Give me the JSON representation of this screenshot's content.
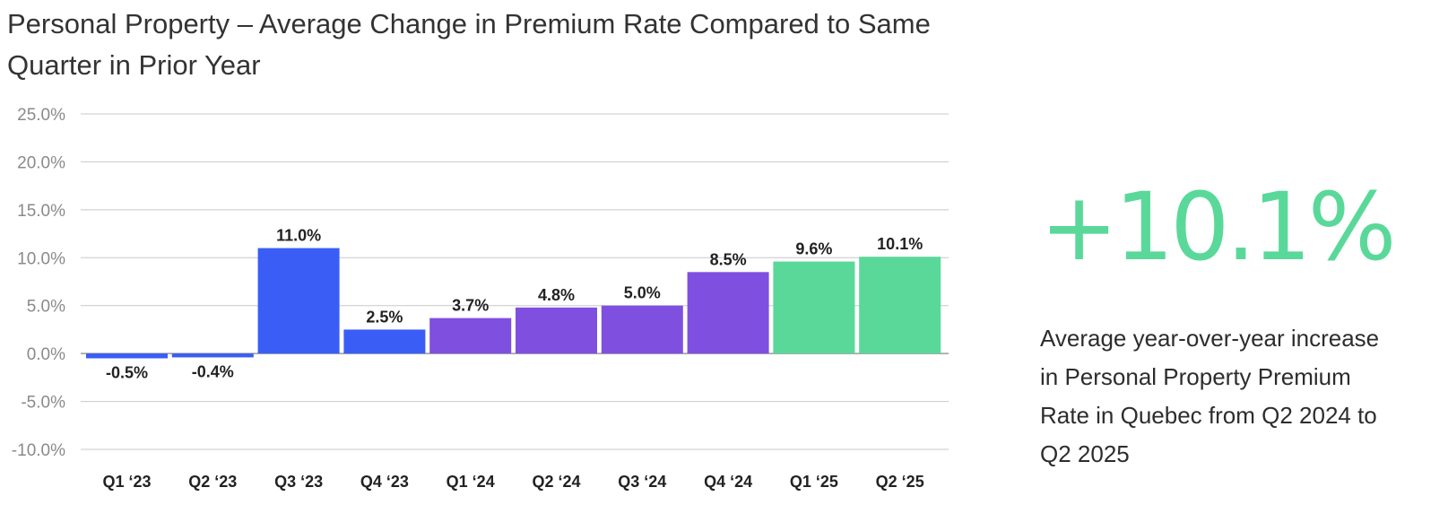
{
  "chart_data": {
    "type": "bar",
    "title": "Personal Property – Average Change in Premium Rate Compared to Same Quarter in Prior Year",
    "xlabel": "",
    "ylabel": "",
    "ylim": [
      -10,
      25
    ],
    "yticks": [
      25,
      20,
      15,
      10,
      5,
      0,
      -5,
      -10
    ],
    "ytick_labels": [
      "25.0%",
      "20.0%",
      "15.0%",
      "10.0%",
      "5.0%",
      "0.0%",
      "-5.0%",
      "-10.0%"
    ],
    "grid": true,
    "categories": [
      "Q1 ‘23",
      "Q2 ‘23",
      "Q3 ‘23",
      "Q4 ‘23",
      "Q1 ‘24",
      "Q2 ‘24",
      "Q3 ‘24",
      "Q4 ‘24",
      "Q1 ‘25",
      "Q2 ‘25"
    ],
    "values": [
      -0.5,
      -0.4,
      11.0,
      2.5,
      3.7,
      4.8,
      5.0,
      8.5,
      9.6,
      10.1
    ],
    "value_labels": [
      "-0.5%",
      "-0.4%",
      "11.0%",
      "2.5%",
      "3.7%",
      "4.8%",
      "5.0%",
      "8.5%",
      "9.6%",
      "10.1%"
    ],
    "bar_colors": [
      "#3a5ef5",
      "#3a5ef5",
      "#3a5ef5",
      "#3a5ef5",
      "#7f4fe0",
      "#7f4fe0",
      "#7f4fe0",
      "#7f4fe0",
      "#5ad89a",
      "#5ad89a"
    ]
  },
  "callout": {
    "value": "+10.1%",
    "description": "Average year-over-year increase in Personal Property Premium Rate in Quebec from Q2 2024 to Q2 2025",
    "color": "#5ad89a"
  },
  "colors": {
    "blue": "#3a5ef5",
    "purple": "#7f4fe0",
    "green": "#5ad89a",
    "gridline": "#c8c8c8",
    "axis_text": "#8a8a8a",
    "label_text": "#222222"
  }
}
